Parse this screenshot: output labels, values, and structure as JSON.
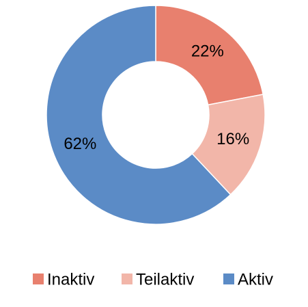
{
  "chart_data": {
    "type": "donut",
    "categories": [
      "Inaktiv",
      "Teilaktiv",
      "Aktiv"
    ],
    "values": [
      22,
      16,
      62
    ],
    "value_labels": [
      "22%",
      "16%",
      "62%"
    ],
    "colors": [
      "#e8806e",
      "#f2b6a9",
      "#5b8bc6"
    ],
    "legend": "bottom"
  }
}
